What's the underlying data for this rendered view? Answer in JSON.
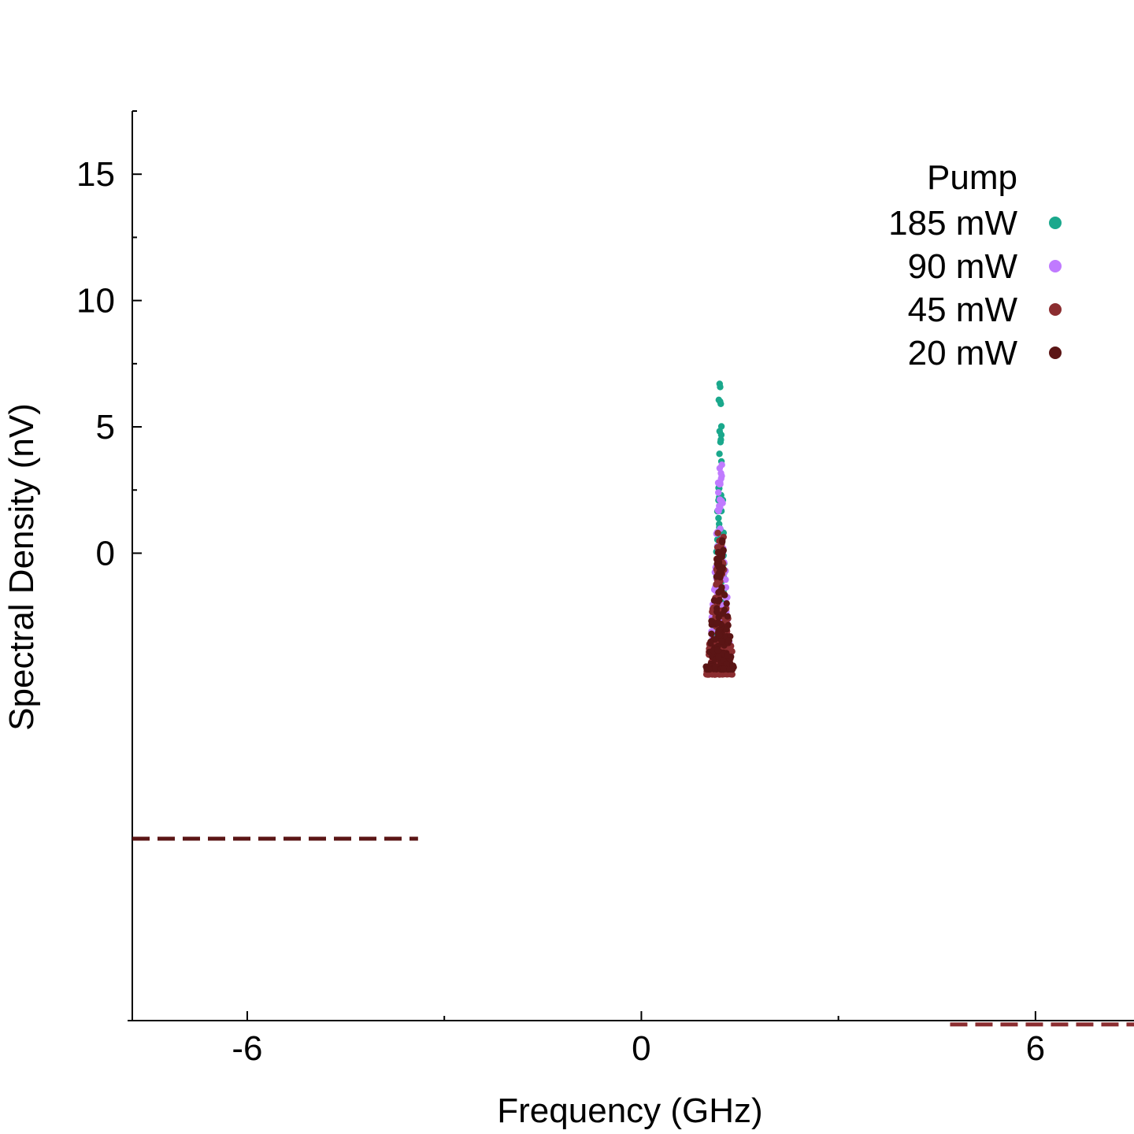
{
  "chart_data": {
    "type": "scatter",
    "title": "",
    "xlabel": "Frequency (GHz)",
    "ylabel": "Spectral Density (nV)",
    "xlim": [
      -7.75,
      7.5
    ],
    "ylim": [
      -18.5,
      17.5
    ],
    "xticks": [
      -6,
      0,
      6
    ],
    "xtick_labels": [
      "-6",
      "0",
      "6"
    ],
    "yticks": [
      0,
      5,
      10,
      15
    ],
    "ytick_labels": [
      "0",
      "5",
      "10",
      "15"
    ],
    "grid": false,
    "legend": {
      "title": "Pump",
      "position": "top-right",
      "entries": [
        "185 mW",
        "90 mW",
        "45 mW",
        "20 mW"
      ]
    },
    "series": [
      {
        "name": "185 mW",
        "color": "#1aa88c",
        "center_x": 1.2,
        "peak_y": 6.7,
        "points": 120
      },
      {
        "name": "90 mW",
        "color": "#c07aff",
        "center_x": 1.2,
        "peak_y": 3.5,
        "points": 140
      },
      {
        "name": "45 mW",
        "color": "#8b2d30",
        "center_x": 1.2,
        "peak_y": 0.8,
        "points": 160
      },
      {
        "name": "20 mW",
        "color": "#5b1515",
        "center_x": 1.2,
        "peak_y": 0.5,
        "points": 160
      }
    ],
    "reference_lines": [
      {
        "name": "20 mW baseline",
        "color": "#5b1515",
        "y": -11.3,
        "x_start": -7.75,
        "x_end": -3.4,
        "dash": "dashed"
      },
      {
        "name": "45 mW baseline",
        "color": "#8b2d30",
        "y": -18.65,
        "x_start": 4.7,
        "x_end": 7.5,
        "dash": "dashed"
      }
    ]
  }
}
